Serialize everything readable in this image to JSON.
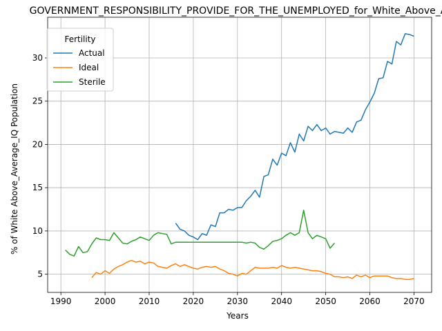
{
  "chart_data": {
    "type": "line",
    "title": "GOVERNMENT_RESPONSIBILITY_PROVIDE_FOR_THE_UNEMPLOYED_for_White_Above_Average_IQ",
    "xlabel": "Years",
    "ylabel": "% of White Above_Average_IQ Population",
    "xlim": [
      1987,
      2074
    ],
    "ylim": [
      2.9,
      34.7
    ],
    "xticks": [
      1990,
      2000,
      2010,
      2020,
      2030,
      2040,
      2050,
      2060,
      2070
    ],
    "yticks": [
      5,
      10,
      15,
      20,
      25,
      30
    ],
    "grid": true,
    "legend": {
      "title": "Fertility",
      "position": "upper-left"
    },
    "series": [
      {
        "name": "Actual",
        "color": "#1f77b4",
        "x": [
          2016,
          2017,
          2018,
          2019,
          2020,
          2021,
          2022,
          2023,
          2024,
          2025,
          2026,
          2027,
          2028,
          2029,
          2030,
          2031,
          2032,
          2033,
          2034,
          2035,
          2036,
          2037,
          2038,
          2039,
          2040,
          2041,
          2042,
          2043,
          2044,
          2045,
          2046,
          2047,
          2048,
          2049,
          2050,
          2051,
          2052,
          2053,
          2054,
          2055,
          2056,
          2057,
          2058,
          2059,
          2060,
          2061,
          2062,
          2063,
          2064,
          2065,
          2066,
          2067,
          2068,
          2069,
          2070
        ],
        "values": [
          10.9,
          10.2,
          10.0,
          9.5,
          9.3,
          9.0,
          9.7,
          9.5,
          10.7,
          10.5,
          12.1,
          12.1,
          12.5,
          12.4,
          12.7,
          12.7,
          13.5,
          14.0,
          14.7,
          13.9,
          16.3,
          16.5,
          18.3,
          17.6,
          19.0,
          18.7,
          20.2,
          19.1,
          21.2,
          20.4,
          22.1,
          21.6,
          22.3,
          21.6,
          21.9,
          21.2,
          21.5,
          21.4,
          21.3,
          21.9,
          21.4,
          22.6,
          22.8,
          24.0,
          24.9,
          25.9,
          27.6,
          27.7,
          29.6,
          29.3,
          31.9,
          31.5,
          32.8,
          32.7,
          32.5
        ]
      },
      {
        "name": "Ideal",
        "color": "#ff7f0e",
        "x": [
          1997,
          1998,
          1999,
          2000,
          2001,
          2002,
          2003,
          2004,
          2005,
          2006,
          2007,
          2008,
          2009,
          2010,
          2011,
          2012,
          2013,
          2014,
          2015,
          2016,
          2017,
          2018,
          2019,
          2020,
          2021,
          2022,
          2023,
          2024,
          2025,
          2026,
          2027,
          2028,
          2029,
          2030,
          2031,
          2032,
          2033,
          2034,
          2035,
          2036,
          2037,
          2038,
          2039,
          2040,
          2041,
          2042,
          2043,
          2044,
          2045,
          2046,
          2047,
          2048,
          2049,
          2050,
          2051,
          2052,
          2053,
          2054,
          2055,
          2056,
          2057,
          2058,
          2059,
          2060,
          2061,
          2062,
          2063,
          2064,
          2065,
          2066,
          2067,
          2068,
          2069,
          2070
        ],
        "values": [
          4.6,
          5.2,
          5.0,
          5.4,
          5.1,
          5.6,
          5.9,
          6.1,
          6.4,
          6.6,
          6.4,
          6.5,
          6.2,
          6.4,
          6.3,
          5.9,
          5.8,
          5.7,
          6.0,
          6.2,
          5.9,
          6.1,
          5.9,
          5.7,
          5.6,
          5.8,
          5.9,
          5.8,
          5.9,
          5.6,
          5.4,
          5.1,
          5.0,
          4.8,
          5.1,
          5.0,
          5.4,
          5.8,
          5.7,
          5.7,
          5.7,
          5.8,
          5.7,
          6.0,
          5.8,
          5.7,
          5.8,
          5.7,
          5.6,
          5.5,
          5.4,
          5.4,
          5.3,
          5.1,
          5.0,
          4.7,
          4.7,
          4.6,
          4.7,
          4.5,
          4.9,
          4.7,
          4.9,
          4.6,
          4.8,
          4.8,
          4.8,
          4.8,
          4.6,
          4.5,
          4.5,
          4.4,
          4.4,
          4.5
        ]
      },
      {
        "name": "Sterile",
        "color": "#2ca02c",
        "x": [
          1991,
          1992,
          1993,
          1994,
          1995,
          1996,
          1997,
          1998,
          1999,
          2000,
          2001,
          2002,
          2003,
          2004,
          2005,
          2006,
          2007,
          2008,
          2009,
          2010,
          2011,
          2012,
          2013,
          2014,
          2015,
          2016,
          2017,
          2018,
          2019,
          2020,
          2021,
          2022,
          2023,
          2024,
          2025,
          2026,
          2027,
          2028,
          2029,
          2030,
          2031,
          2032,
          2033,
          2034,
          2035,
          2036,
          2037,
          2038,
          2039,
          2040,
          2041,
          2042,
          2043,
          2044,
          2045,
          2046,
          2047,
          2048,
          2049,
          2050,
          2051,
          2052
        ],
        "values": [
          7.8,
          7.3,
          7.1,
          8.2,
          7.5,
          7.6,
          8.5,
          9.2,
          9.0,
          9.0,
          8.9,
          9.8,
          9.2,
          8.6,
          8.5,
          8.8,
          9.0,
          9.3,
          9.1,
          8.9,
          9.5,
          9.8,
          9.7,
          9.6,
          8.5,
          8.7,
          8.7,
          8.7,
          8.7,
          8.7,
          8.7,
          8.7,
          8.7,
          8.7,
          8.7,
          8.7,
          8.7,
          8.7,
          8.7,
          8.7,
          8.7,
          8.6,
          8.7,
          8.6,
          8.1,
          7.9,
          8.3,
          8.8,
          8.9,
          9.1,
          9.5,
          9.8,
          9.5,
          9.8,
          12.4,
          9.8,
          9.1,
          9.5,
          9.3,
          9.1,
          8.0,
          8.6
        ]
      }
    ]
  }
}
